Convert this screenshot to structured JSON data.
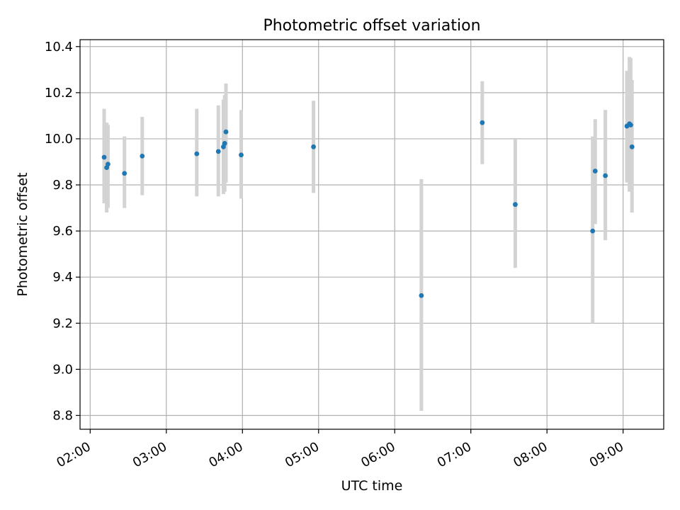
{
  "chart_data": {
    "type": "scatter",
    "title": "Photometric offset variation",
    "xlabel": "UTC time",
    "ylabel": "Photometric offset",
    "x_ticks": [
      "02:00",
      "03:00",
      "04:00",
      "05:00",
      "06:00",
      "07:00",
      "08:00",
      "09:00"
    ],
    "y_ticks": [
      "8.8",
      "9.0",
      "9.2",
      "9.4",
      "9.6",
      "9.8",
      "10.0",
      "10.2",
      "10.4"
    ],
    "xlim": [
      "01:52",
      "09:32"
    ],
    "ylim": [
      8.74,
      10.43
    ],
    "grid": true,
    "colors": {
      "points": "#1f77b4",
      "errorbars": "#d3d3d3",
      "grid": "#b0b0b0"
    },
    "points": [
      {
        "x": "02:11",
        "y": 9.92,
        "err": [
          9.72,
          10.13
        ]
      },
      {
        "x": "02:13",
        "y": 9.875,
        "err": [
          9.68,
          10.07
        ]
      },
      {
        "x": "02:14",
        "y": 9.89,
        "err": [
          9.7,
          10.06
        ]
      },
      {
        "x": "02:27",
        "y": 9.85,
        "err": [
          9.7,
          10.01
        ]
      },
      {
        "x": "02:41",
        "y": 9.925,
        "err": [
          9.755,
          10.095
        ]
      },
      {
        "x": "03:24",
        "y": 9.935,
        "err": [
          9.75,
          10.13
        ]
      },
      {
        "x": "03:41",
        "y": 9.945,
        "err": [
          9.75,
          10.145
        ]
      },
      {
        "x": "03:45",
        "y": 9.965,
        "err": [
          9.76,
          10.17
        ]
      },
      {
        "x": "03:46",
        "y": 9.98,
        "err": [
          9.77,
          10.19
        ]
      },
      {
        "x": "03:47",
        "y": 10.03,
        "err": [
          9.81,
          10.24
        ]
      },
      {
        "x": "03:59",
        "y": 9.93,
        "err": [
          9.74,
          10.125
        ]
      },
      {
        "x": "04:56",
        "y": 9.965,
        "err": [
          9.765,
          10.165
        ]
      },
      {
        "x": "06:21",
        "y": 9.32,
        "err": [
          8.82,
          9.825
        ]
      },
      {
        "x": "07:09",
        "y": 10.07,
        "err": [
          9.89,
          10.25
        ]
      },
      {
        "x": "07:35",
        "y": 9.715,
        "err": [
          9.44,
          10.0
        ]
      },
      {
        "x": "08:36",
        "y": 9.6,
        "err": [
          9.2,
          10.01
        ]
      },
      {
        "x": "08:38",
        "y": 9.86,
        "err": [
          9.63,
          10.085
        ]
      },
      {
        "x": "08:46",
        "y": 9.84,
        "err": [
          9.56,
          10.125
        ]
      },
      {
        "x": "09:03",
        "y": 10.055,
        "err": [
          9.81,
          10.295
        ]
      },
      {
        "x": "09:05",
        "y": 10.065,
        "err": [
          9.77,
          10.355
        ]
      },
      {
        "x": "09:06",
        "y": 10.06,
        "err": [
          9.78,
          10.35
        ]
      },
      {
        "x": "09:07",
        "y": 9.965,
        "err": [
          9.68,
          10.255
        ]
      }
    ]
  }
}
